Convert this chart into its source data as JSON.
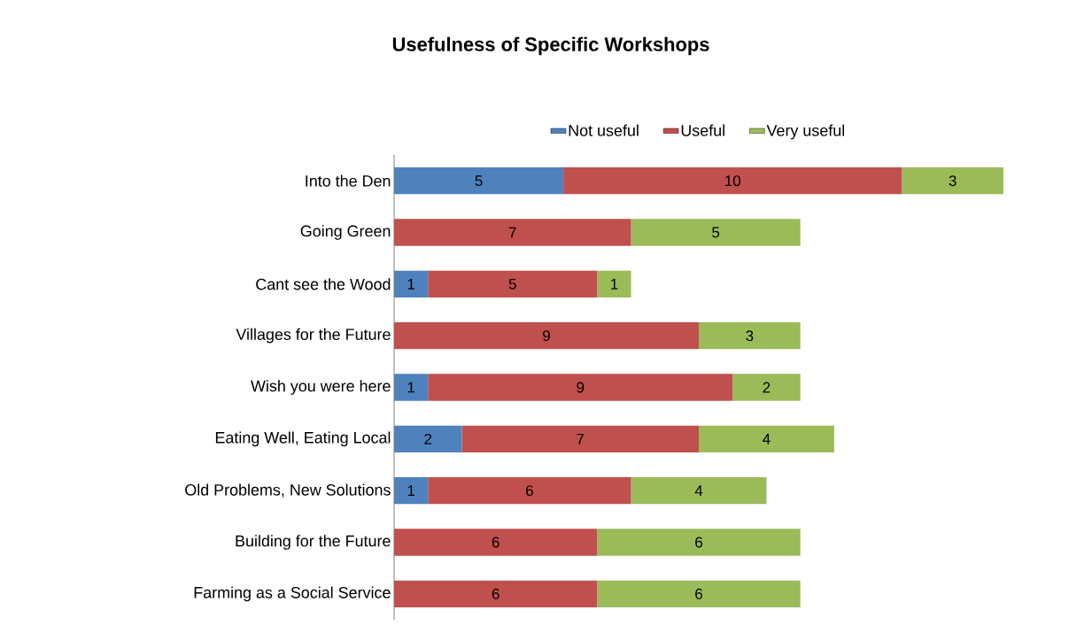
{
  "chart_data": {
    "type": "bar",
    "orientation": "horizontal",
    "stacked": true,
    "title": "Usefulness of Specific Workshops",
    "categories": [
      "Into the Den",
      "Going Green",
      "Cant see the Wood",
      "Villages for the Future",
      "Wish you were here",
      "Eating Well, Eating Local",
      "Old Problems, New Solutions",
      "Building for the Future",
      "Farming as a Social Service"
    ],
    "series": [
      {
        "name": "Not useful",
        "color": "#4f81bd",
        "values": [
          5,
          null,
          1,
          null,
          1,
          2,
          1,
          null,
          null
        ]
      },
      {
        "name": "Useful",
        "color": "#c0504d",
        "values": [
          10,
          7,
          5,
          9,
          9,
          7,
          6,
          6,
          6
        ]
      },
      {
        "name": "Very useful",
        "color": "#9bbb59",
        "values": [
          3,
          5,
          1,
          3,
          2,
          4,
          4,
          6,
          6
        ]
      }
    ],
    "data_labels": true,
    "legend": "top"
  }
}
